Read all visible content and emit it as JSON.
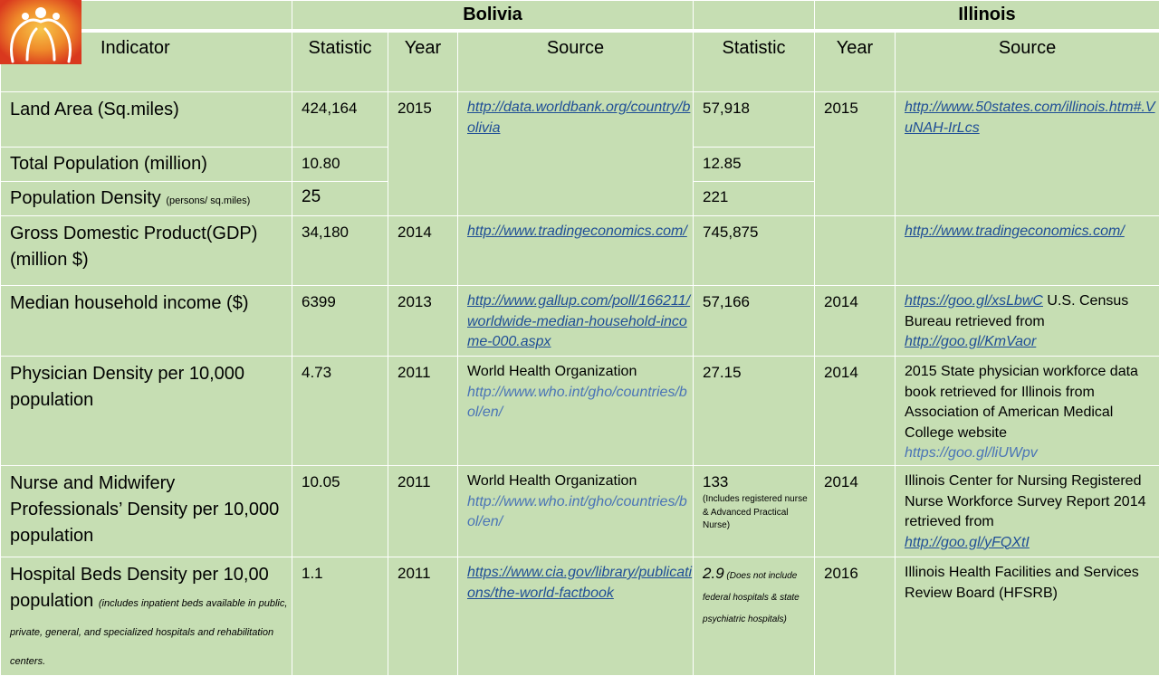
{
  "countries": {
    "bolivia": "Bolivia",
    "illinois": "Illinois"
  },
  "headers": {
    "indicator": "Indicator",
    "statistic": "Statistic",
    "year": "Year",
    "source": "Source"
  },
  "rows": {
    "land": {
      "indicator": "Land Area (Sq.miles)",
      "bo_stat": "424,164",
      "bo_year": "2015",
      "bo_source": "http://data.worldbank.org/country/bolivia",
      "il_stat": "57,918",
      "il_year": "2015",
      "il_source": "http://www.50states.com/illinois.htm#.VuNAH-IrLcs"
    },
    "pop": {
      "indicator": "Total Population (million)",
      "bo_stat": "10.80",
      "il_stat": "12.85"
    },
    "density": {
      "indicator": "Population Density ",
      "indicator_small": "(persons/ sq.miles)",
      "bo_stat": "25",
      "il_stat": "221"
    },
    "gdp": {
      "indicator": "Gross Domestic Product(GDP) (million $)",
      "bo_stat": "34,180",
      "bo_year": "2014",
      "bo_source": "http://www.tradingeconomics.com/",
      "il_stat": "745,875",
      "il_year": "",
      "il_source": "http://www.tradingeconomics.com/"
    },
    "income": {
      "indicator": "Median household income ($)",
      "bo_stat": "6399",
      "bo_year": "2013",
      "bo_source": "http://www.gallup.com/poll/166211/worldwide-median-household-income-000.aspx",
      "il_stat": "57,166",
      "il_year": "2014",
      "il_source_link1": "https://goo.gl/xsLbwC",
      "il_source_text": " U.S. Census Bureau retrieved from ",
      "il_source_link2": "http://goo.gl/KmVaor"
    },
    "physician": {
      "indicator": "Physician Density per 10,000 population",
      "bo_stat": "4.73",
      "bo_year": "2011",
      "bo_source_text": "World Health Organization",
      "bo_source_link": "http://www.who.int/gho/countries/bol/en/",
      "il_stat": "27.15",
      "il_year": "2014",
      "il_source_text": "2015 State physician workforce data book retrieved  for Illinois from Association of American Medical College website",
      "il_source_link": "https://goo.gl/liUWpv"
    },
    "nurse": {
      "indicator": "Nurse and Midwifery Professionals’ Density per 10,000 population",
      "bo_stat": "10.05",
      "bo_year": "2011",
      "bo_source_text": "World Health Organization",
      "bo_source_link": "http://www.who.int/gho/countries/bol/en/",
      "il_stat": "133",
      "il_note": "(Includes registered nurse & Advanced Practical Nurse)",
      "il_year": "2014",
      "il_source_text": "Illinois Center for Nursing Registered Nurse Workforce Survey Report 2014 retrieved  from",
      "il_source_link": "http://goo.gl/yFQXtI"
    },
    "beds": {
      "indicator": "Hospital Beds Density per 10,00 population ",
      "indicator_note": "(includes inpatient beds available in public, private, general, and specialized hospitals and rehabilitation centers.",
      "bo_stat": "1.1",
      "bo_year": "2011",
      "bo_source": "https://www.cia.gov/library/publications/the-world-factbook",
      "il_stat": "2.9",
      "il_note": " (Does not include federal hospitals & state psychiatric hospitals)",
      "il_year": "2016",
      "il_source_text": "Illinois Health Facilities and Services Review Board (HFSRB)"
    }
  },
  "logo": {
    "icon": "people-circle-logo",
    "colors": [
      "#d9381e",
      "#f5a623",
      "#ffffff"
    ]
  }
}
